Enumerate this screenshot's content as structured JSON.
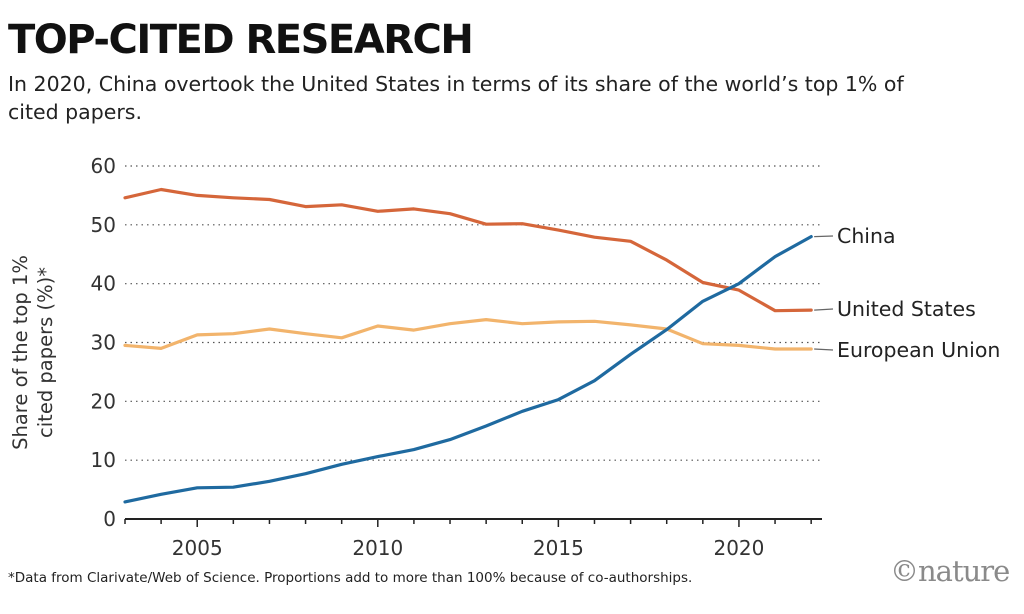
{
  "header": {
    "title": "TOP-CITED RESEARCH",
    "subtitle": "In 2020, China overtook the United States in terms of its share of the world’s top 1% of cited papers."
  },
  "footnote": "*Data from Clarivate/Web of Science. Proportions add to more than 100% because of co-authorships.",
  "logo": "©nature",
  "chart_data": {
    "type": "line",
    "title": "",
    "xlabel": "",
    "ylabel": "Share of the top 1% cited papers (%)*",
    "xlim": [
      2003,
      2022.3
    ],
    "ylim": [
      0,
      60
    ],
    "x_ticks": [
      2005,
      2010,
      2015,
      2020
    ],
    "y_ticks": [
      0,
      10,
      20,
      30,
      40,
      50,
      60
    ],
    "grid": "horizontal-dotted",
    "legend": "direct labels at line ends",
    "x": [
      2003,
      2004,
      2005,
      2006,
      2007,
      2008,
      2009,
      2010,
      2011,
      2012,
      2013,
      2014,
      2015,
      2016,
      2017,
      2018,
      2019,
      2020,
      2021,
      2022
    ],
    "series": [
      {
        "name": "China",
        "color": "#1f6aa0",
        "values": [
          2.9,
          4.2,
          5.3,
          5.4,
          6.4,
          7.7,
          9.3,
          10.6,
          11.8,
          13.5,
          15.8,
          18.3,
          20.3,
          23.5,
          28.0,
          32.2,
          37.0,
          40.0,
          44.6,
          48.0
        ]
      },
      {
        "name": "United States",
        "color": "#d5663a",
        "values": [
          54.6,
          56.0,
          55.0,
          54.6,
          54.3,
          53.1,
          53.4,
          52.3,
          52.7,
          51.9,
          50.1,
          50.2,
          49.1,
          47.9,
          47.2,
          44.0,
          40.2,
          38.9,
          35.4,
          35.5
        ]
      },
      {
        "name": "European Union",
        "color": "#f2b46c",
        "values": [
          29.5,
          29.0,
          31.3,
          31.5,
          32.3,
          31.5,
          30.8,
          32.8,
          32.1,
          33.2,
          33.9,
          33.2,
          33.5,
          33.6,
          33.0,
          32.3,
          29.8,
          29.5,
          28.9,
          28.9
        ]
      }
    ]
  }
}
